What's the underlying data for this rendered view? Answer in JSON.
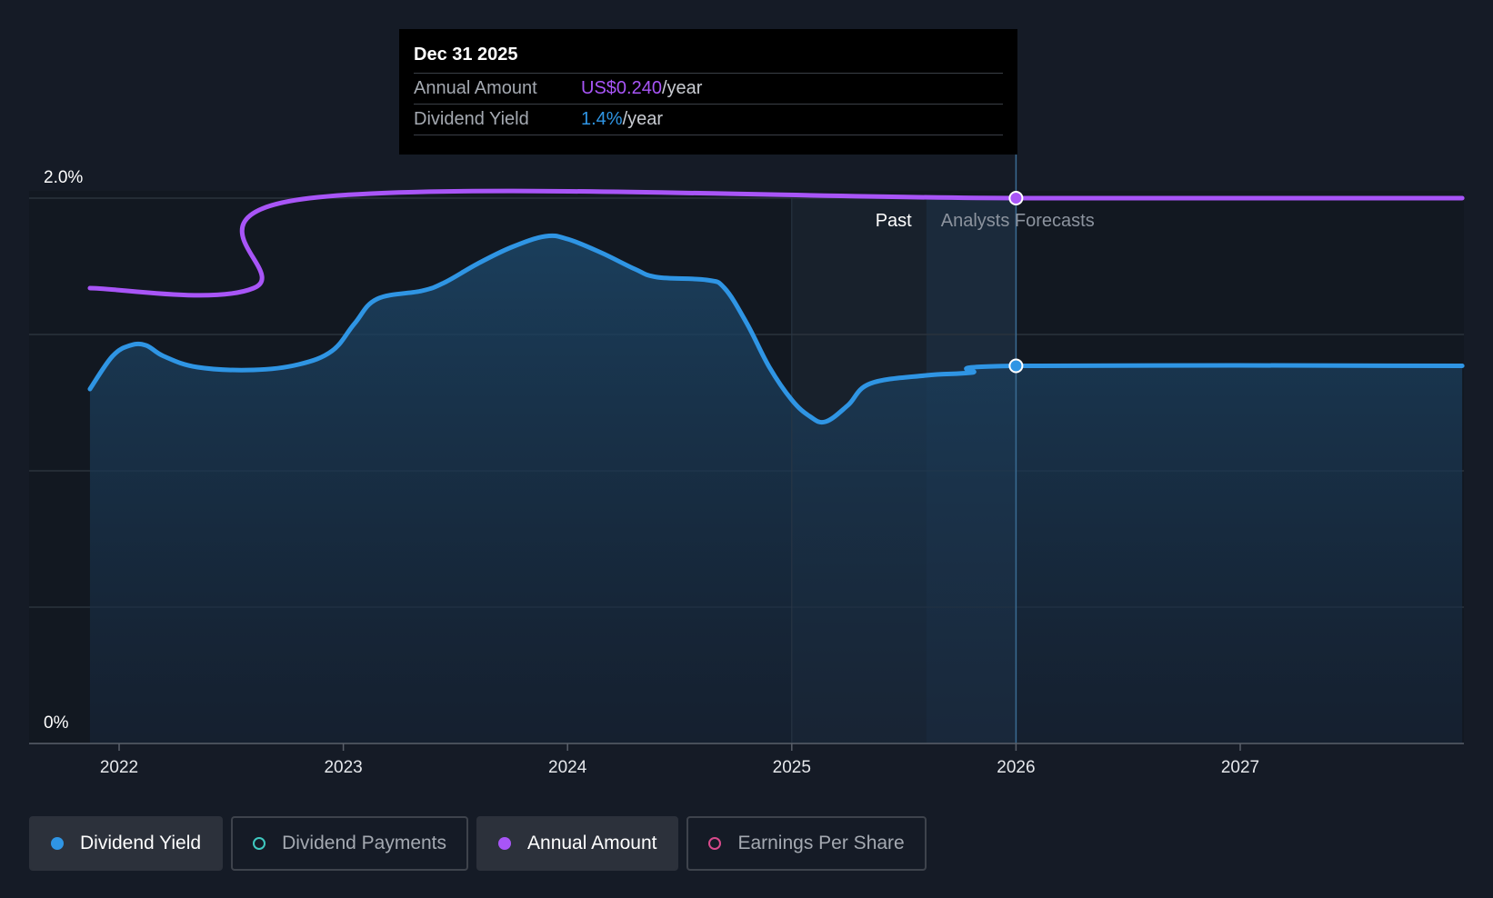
{
  "chart_data": {
    "type": "line",
    "title": "",
    "x_domain": [
      2021.75,
      2027.99
    ],
    "x_ticks": [
      {
        "value": 2022,
        "label": "2022"
      },
      {
        "value": 2023,
        "label": "2023"
      },
      {
        "value": 2024,
        "label": "2024"
      },
      {
        "value": 2025,
        "label": "2025"
      },
      {
        "value": 2026,
        "label": "2026"
      },
      {
        "value": 2027,
        "label": "2027"
      }
    ],
    "y_axis": {
      "min": 0,
      "max": 2.0,
      "unit": "%",
      "top_label": "2.0%",
      "bottom_label": "0%",
      "gridlines": [
        0,
        0.5,
        1.0,
        1.5,
        2.0
      ]
    },
    "series": [
      {
        "name": "Dividend Yield",
        "color": "#2f95e4",
        "unit": "%",
        "points": [
          [
            2021.87,
            1.3
          ],
          [
            2021.97,
            1.42
          ],
          [
            2022.05,
            1.46
          ],
          [
            2022.12,
            1.46
          ],
          [
            2022.2,
            1.42
          ],
          [
            2022.35,
            1.38
          ],
          [
            2022.6,
            1.37
          ],
          [
            2022.8,
            1.39
          ],
          [
            2022.95,
            1.44
          ],
          [
            2023.05,
            1.54
          ],
          [
            2023.15,
            1.63
          ],
          [
            2023.35,
            1.66
          ],
          [
            2023.45,
            1.69
          ],
          [
            2023.6,
            1.76
          ],
          [
            2023.75,
            1.82
          ],
          [
            2023.9,
            1.86
          ],
          [
            2024.0,
            1.85
          ],
          [
            2024.15,
            1.8
          ],
          [
            2024.3,
            1.74
          ],
          [
            2024.4,
            1.71
          ],
          [
            2024.62,
            1.7
          ],
          [
            2024.7,
            1.67
          ],
          [
            2024.8,
            1.54
          ],
          [
            2024.9,
            1.38
          ],
          [
            2025.0,
            1.26
          ],
          [
            2025.08,
            1.2
          ],
          [
            2025.15,
            1.18
          ],
          [
            2025.25,
            1.24
          ],
          [
            2025.35,
            1.32
          ],
          [
            2025.6,
            1.35
          ],
          [
            2025.8,
            1.36
          ],
          [
            2026.0,
            1.385
          ],
          [
            2027.99,
            1.385
          ]
        ]
      },
      {
        "name": "Annual Amount",
        "color": "#a855f7",
        "unit": "US$/year",
        "points": [
          [
            2021.87,
            0.18
          ],
          [
            2022.6,
            0.18
          ],
          [
            2022.85,
            0.24
          ],
          [
            2026.0,
            0.24
          ],
          [
            2027.99,
            0.24
          ]
        ]
      }
    ],
    "past_label": "Past",
    "forecast_label": "Analysts Forecasts",
    "past_start": 2025.0,
    "forecast_start": 2025.6,
    "cursor_x": 2026.0
  },
  "tooltip": {
    "date": "Dec 31 2025",
    "rows": [
      {
        "key": "Annual Amount",
        "value": "US$0.240",
        "unit": "/year"
      },
      {
        "key": "Dividend Yield",
        "value": "1.4%",
        "unit": "/year"
      }
    ]
  },
  "legend": [
    {
      "label": "Dividend Yield",
      "color": "#2f95e4",
      "active": true
    },
    {
      "label": "Dividend Payments",
      "color": "#3fc9c0",
      "active": false
    },
    {
      "label": "Annual Amount",
      "color": "#a855f7",
      "active": true
    },
    {
      "label": "Earnings Per Share",
      "color": "#d94a8c",
      "active": false
    }
  ]
}
